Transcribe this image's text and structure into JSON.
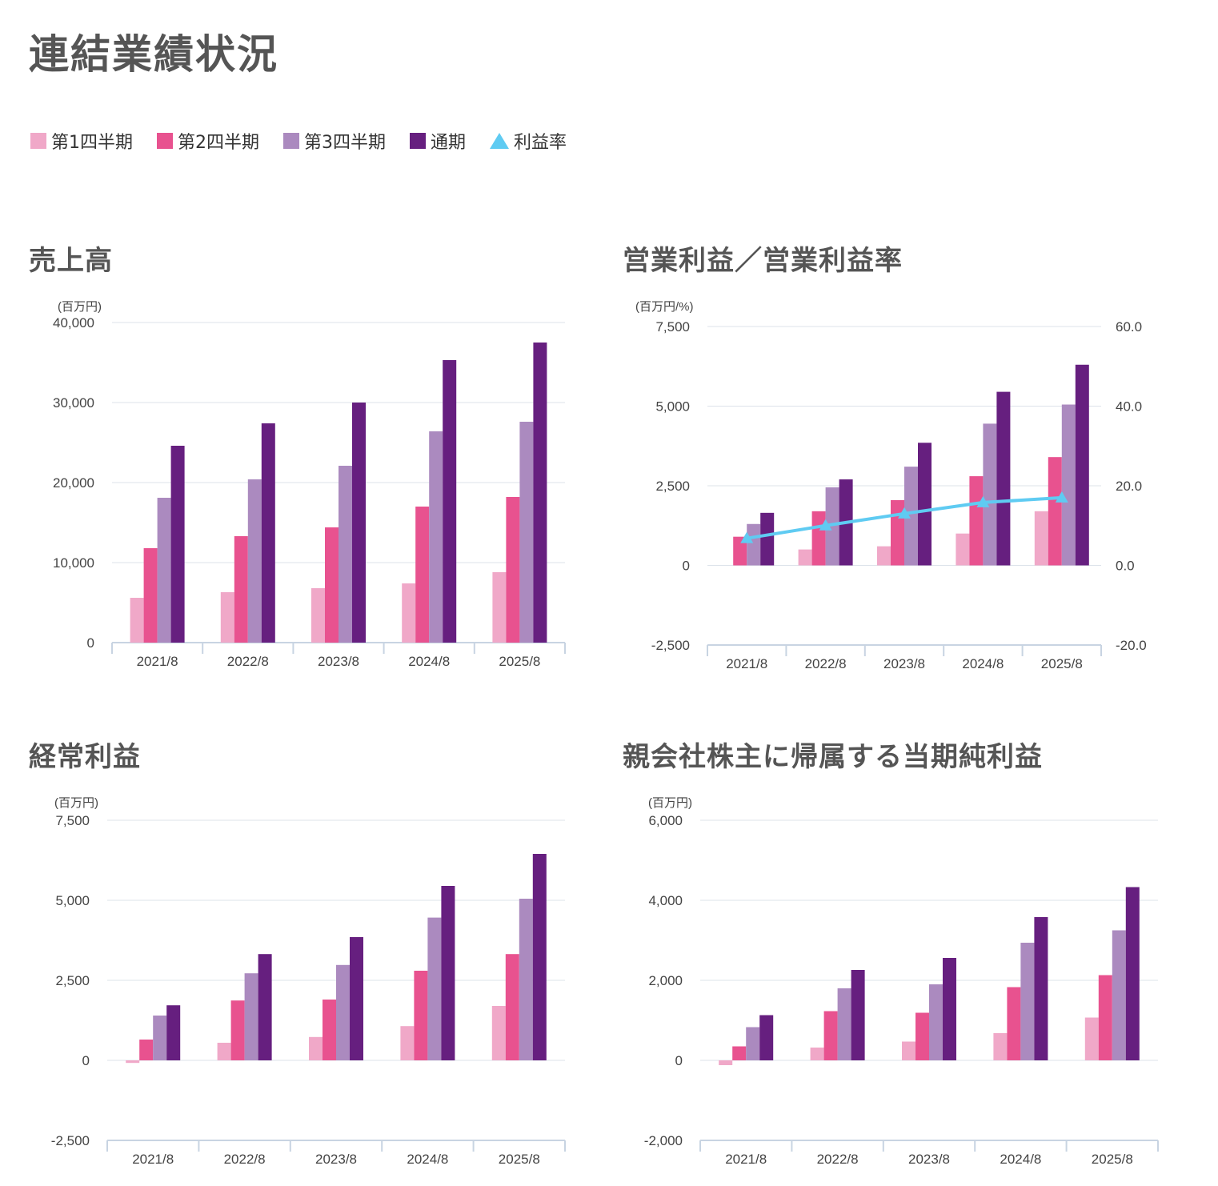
{
  "page": {
    "title": "連結業績状況"
  },
  "legend": [
    {
      "label": "第1四半期",
      "color": "#f0a8c8",
      "shape": "square"
    },
    {
      "label": "第2四半期",
      "color": "#e8528f",
      "shape": "square"
    },
    {
      "label": "第3四半期",
      "color": "#ab8abf",
      "shape": "square"
    },
    {
      "label": "通期",
      "color": "#661f7f",
      "shape": "square"
    },
    {
      "label": "利益率",
      "color": "#5fcbf2",
      "shape": "triangle"
    }
  ],
  "chart_data": [
    {
      "id": "sales",
      "type": "bar",
      "title": "売上高",
      "unit": "(百万円)",
      "categories": [
        "2021/8",
        "2022/8",
        "2023/8",
        "2024/8",
        "2025/8"
      ],
      "ylim": [
        0,
        40000
      ],
      "yticks": [
        0,
        10000,
        20000,
        30000,
        40000
      ],
      "ytick_labels": [
        "0",
        "10,000",
        "20,000",
        "30,000",
        "40,000"
      ],
      "series": [
        {
          "name": "第1四半期",
          "color": "#f0a8c8",
          "values": [
            5600,
            6300,
            6800,
            7400,
            8800
          ]
        },
        {
          "name": "第2四半期",
          "color": "#e8528f",
          "values": [
            11800,
            13300,
            14400,
            17000,
            18200
          ]
        },
        {
          "name": "第3四半期",
          "color": "#ab8abf",
          "values": [
            18100,
            20400,
            22100,
            26400,
            27600
          ]
        },
        {
          "name": "通期",
          "color": "#661f7f",
          "values": [
            24600,
            27400,
            30000,
            35300,
            37500
          ]
        }
      ]
    },
    {
      "id": "operating-profit",
      "type": "bar",
      "title": "営業利益／営業利益率",
      "unit": "(百万円/%)",
      "categories": [
        "2021/8",
        "2022/8",
        "2023/8",
        "2024/8",
        "2025/8"
      ],
      "ylim": [
        -2500,
        7500
      ],
      "yticks": [
        -2500,
        0,
        2500,
        5000,
        7500
      ],
      "ytick_labels": [
        "-2,500",
        "0",
        "2,500",
        "5,000",
        "7,500"
      ],
      "y2lim": [
        -20,
        60
      ],
      "y2ticks": [
        -20,
        0,
        20,
        40,
        60
      ],
      "y2tick_labels": [
        "-20.0",
        "0.0",
        "20.0",
        "40.0",
        "60.0"
      ],
      "series": [
        {
          "name": "第1四半期",
          "color": "#f0a8c8",
          "values": [
            0,
            500,
            600,
            1000,
            1700
          ]
        },
        {
          "name": "第2四半期",
          "color": "#e8528f",
          "values": [
            900,
            1700,
            2050,
            2800,
            3400
          ]
        },
        {
          "name": "第3四半期",
          "color": "#ab8abf",
          "values": [
            1300,
            2450,
            3100,
            4450,
            5050
          ]
        },
        {
          "name": "通期",
          "color": "#661f7f",
          "values": [
            1650,
            2700,
            3850,
            5450,
            6300
          ]
        }
      ],
      "line_series": {
        "name": "利益率",
        "color": "#5fcbf2",
        "values": [
          6.8,
          10.0,
          13.0,
          15.8,
          17.0
        ]
      }
    },
    {
      "id": "ordinary-profit",
      "type": "bar",
      "title": "経常利益",
      "unit": "(百万円)",
      "categories": [
        "2021/8",
        "2022/8",
        "2023/8",
        "2024/8",
        "2025/8"
      ],
      "ylim": [
        -2500,
        7500
      ],
      "yticks": [
        -2500,
        0,
        2500,
        5000,
        7500
      ],
      "ytick_labels": [
        "-2,500",
        "0",
        "2,500",
        "5,000",
        "7,500"
      ],
      "series": [
        {
          "name": "第1四半期",
          "color": "#f0a8c8",
          "values": [
            -80,
            550,
            730,
            1070,
            1700
          ]
        },
        {
          "name": "第2四半期",
          "color": "#e8528f",
          "values": [
            650,
            1870,
            1900,
            2800,
            3320
          ]
        },
        {
          "name": "第3四半期",
          "color": "#ab8abf",
          "values": [
            1400,
            2720,
            2980,
            4460,
            5050
          ]
        },
        {
          "name": "通期",
          "color": "#661f7f",
          "values": [
            1720,
            3320,
            3850,
            5450,
            6450
          ]
        }
      ]
    },
    {
      "id": "net-income",
      "type": "bar",
      "title": "親会社株主に帰属する当期純利益",
      "unit": "(百万円)",
      "categories": [
        "2021/8",
        "2022/8",
        "2023/8",
        "2024/8",
        "2025/8"
      ],
      "ylim": [
        -2000,
        6000
      ],
      "yticks": [
        -2000,
        0,
        2000,
        4000,
        6000
      ],
      "ytick_labels": [
        "-2,000",
        "0",
        "2,000",
        "4,000",
        "6,000"
      ],
      "series": [
        {
          "name": "第1四半期",
          "color": "#f0a8c8",
          "values": [
            -120,
            320,
            470,
            680,
            1070
          ]
        },
        {
          "name": "第2四半期",
          "color": "#e8528f",
          "values": [
            350,
            1230,
            1190,
            1830,
            2130
          ]
        },
        {
          "name": "第3四半期",
          "color": "#ab8abf",
          "values": [
            830,
            1800,
            1900,
            2940,
            3250
          ]
        },
        {
          "name": "通期",
          "color": "#661f7f",
          "values": [
            1130,
            2260,
            2560,
            3580,
            4330
          ]
        }
      ]
    }
  ]
}
